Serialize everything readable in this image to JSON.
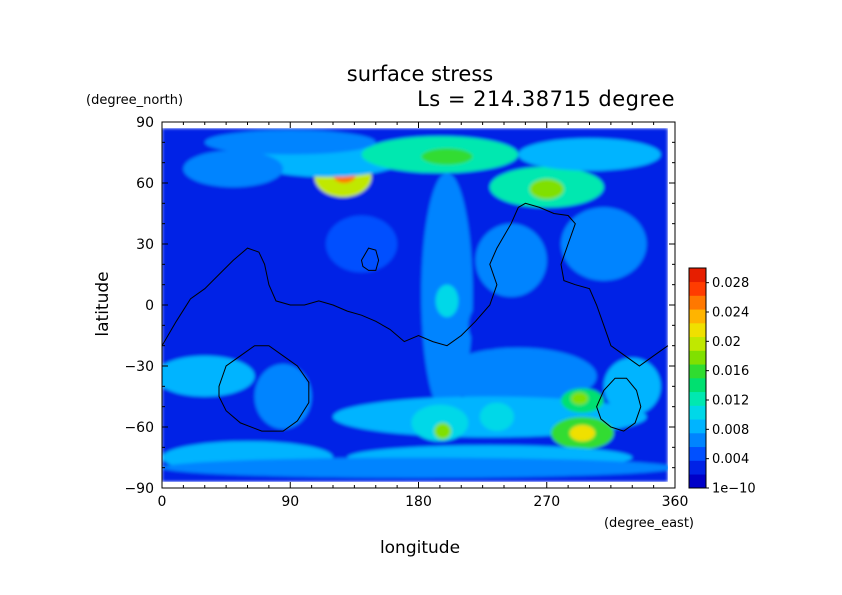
{
  "chart_data": {
    "type": "heatmap",
    "title": "surface stress",
    "subtitle": "Ls = 214.38715 degree",
    "xlabel": "longitude",
    "ylabel": "latitude",
    "xunit": "(degree_east)",
    "yunit": "(degree_north)",
    "xlim": [
      0,
      360
    ],
    "ylim": [
      -90,
      90
    ],
    "xticks": [
      0,
      90,
      180,
      270,
      360
    ],
    "yticks": [
      90,
      60,
      30,
      0,
      -30,
      -60,
      -90
    ],
    "xtick_labels": [
      "0",
      "90",
      "180",
      "270",
      "360"
    ],
    "ytick_labels": [
      "90",
      "60",
      "30",
      "0",
      "−30",
      "−60",
      "−90"
    ],
    "data_extent": {
      "lon": [
        0,
        355
      ],
      "lat": [
        -87,
        87
      ]
    },
    "background_level": 0.003,
    "colorbar": {
      "min": 1e-10,
      "max": 0.03,
      "labels": [
        "1e−10",
        "0.004",
        "0.008",
        "0.012",
        "0.016",
        "0.02",
        "0.024",
        "0.028"
      ],
      "label_values": [
        1e-10,
        0.004,
        0.008,
        0.012,
        0.016,
        0.02,
        0.024,
        0.028
      ],
      "palette": [
        "#0000c8",
        "#0022e6",
        "#0050ff",
        "#0084ff",
        "#00b4ff",
        "#00d8e8",
        "#00e8b0",
        "#00e070",
        "#30dc30",
        "#80e000",
        "#c0e800",
        "#f0e000",
        "#ffb400",
        "#ff7800",
        "#ff3c00",
        "#e61e00"
      ]
    },
    "features": [
      {
        "lon": 127,
        "lat": 63,
        "rx": 20,
        "ry": 10,
        "value": 0.019
      },
      {
        "lon": 128,
        "lat": 64,
        "rx": 8,
        "ry": 4,
        "value": 0.025
      },
      {
        "lon": 115,
        "lat": 72,
        "rx": 55,
        "ry": 9,
        "value": 0.008
      },
      {
        "lon": 195,
        "lat": 74,
        "rx": 55,
        "ry": 9,
        "value": 0.012
      },
      {
        "lon": 200,
        "lat": 73,
        "rx": 18,
        "ry": 4,
        "value": 0.016
      },
      {
        "lon": 90,
        "lat": 80,
        "rx": 60,
        "ry": 6,
        "value": 0.007
      },
      {
        "lon": 270,
        "lat": 58,
        "rx": 40,
        "ry": 10,
        "value": 0.013
      },
      {
        "lon": 270,
        "lat": 57,
        "rx": 12,
        "ry": 5,
        "value": 0.018
      },
      {
        "lon": 300,
        "lat": 74,
        "rx": 50,
        "ry": 8,
        "value": 0.008
      },
      {
        "lon": 50,
        "lat": 67,
        "rx": 35,
        "ry": 9,
        "value": 0.007
      },
      {
        "lon": 200,
        "lat": 5,
        "rx": 18,
        "ry": 60,
        "value": 0.007
      },
      {
        "lon": 200,
        "lat": 2,
        "rx": 8,
        "ry": 8,
        "value": 0.01
      },
      {
        "lon": 245,
        "lat": 22,
        "rx": 25,
        "ry": 18,
        "value": 0.007
      },
      {
        "lon": 30,
        "lat": -35,
        "rx": 35,
        "ry": 10,
        "value": 0.008
      },
      {
        "lon": 310,
        "lat": 30,
        "rx": 30,
        "ry": 18,
        "value": 0.006
      },
      {
        "lon": 140,
        "lat": 30,
        "rx": 25,
        "ry": 14,
        "value": 0.005
      },
      {
        "lon": 250,
        "lat": -35,
        "rx": 55,
        "ry": 14,
        "value": 0.006
      },
      {
        "lon": 230,
        "lat": -55,
        "rx": 110,
        "ry": 10,
        "value": 0.009
      },
      {
        "lon": 195,
        "lat": -58,
        "rx": 20,
        "ry": 9,
        "value": 0.011
      },
      {
        "lon": 197,
        "lat": -62,
        "rx": 6,
        "ry": 4,
        "value": 0.017
      },
      {
        "lon": 235,
        "lat": -55,
        "rx": 12,
        "ry": 7,
        "value": 0.011
      },
      {
        "lon": 295,
        "lat": -47,
        "rx": 15,
        "ry": 6,
        "value": 0.014
      },
      {
        "lon": 293,
        "lat": -46,
        "rx": 6,
        "ry": 3,
        "value": 0.017
      },
      {
        "lon": 295,
        "lat": -63,
        "rx": 22,
        "ry": 8,
        "value": 0.016
      },
      {
        "lon": 295,
        "lat": -63,
        "rx": 9,
        "ry": 4,
        "value": 0.022
      },
      {
        "lon": 330,
        "lat": -40,
        "rx": 20,
        "ry": 14,
        "value": 0.009
      },
      {
        "lon": 60,
        "lat": -75,
        "rx": 60,
        "ry": 8,
        "value": 0.008
      },
      {
        "lon": 230,
        "lat": -75,
        "rx": 100,
        "ry": 6,
        "value": 0.008
      },
      {
        "lon": 180,
        "lat": -80,
        "rx": 180,
        "ry": 5,
        "value": 0.006
      },
      {
        "lon": 85,
        "lat": -45,
        "rx": 20,
        "ry": 16,
        "value": 0.007
      },
      {
        "lon": 80,
        "lat": -5,
        "rx": 10,
        "ry": 10,
        "value": 0.002
      },
      {
        "lon": 230,
        "lat": -10,
        "rx": 15,
        "ry": 12,
        "value": 0.002
      }
    ],
    "contours": [
      {
        "name": "dichotomy-line",
        "closed": false,
        "points": [
          [
            0,
            -20
          ],
          [
            10,
            -8
          ],
          [
            20,
            3
          ],
          [
            30,
            8
          ],
          [
            40,
            15
          ],
          [
            50,
            22
          ],
          [
            60,
            28
          ],
          [
            68,
            26
          ],
          [
            72,
            20
          ],
          [
            75,
            10
          ],
          [
            80,
            2
          ],
          [
            90,
            0
          ],
          [
            100,
            0
          ],
          [
            110,
            2
          ],
          [
            120,
            0
          ],
          [
            130,
            -3
          ],
          [
            140,
            -5
          ],
          [
            150,
            -8
          ],
          [
            160,
            -12
          ],
          [
            170,
            -18
          ],
          [
            180,
            -15
          ],
          [
            190,
            -18
          ],
          [
            200,
            -20
          ],
          [
            210,
            -15
          ],
          [
            220,
            -8
          ],
          [
            230,
            0
          ],
          [
            235,
            10
          ],
          [
            230,
            20
          ],
          [
            235,
            28
          ],
          [
            245,
            40
          ],
          [
            250,
            48
          ],
          [
            255,
            50
          ],
          [
            265,
            48
          ],
          [
            275,
            45
          ],
          [
            285,
            44
          ],
          [
            290,
            40
          ],
          [
            285,
            30
          ],
          [
            280,
            20
          ],
          [
            282,
            12
          ],
          [
            290,
            10
          ],
          [
            300,
            8
          ],
          [
            305,
            0
          ],
          [
            310,
            -10
          ],
          [
            315,
            -20
          ],
          [
            325,
            -25
          ],
          [
            335,
            -30
          ],
          [
            345,
            -25
          ],
          [
            355,
            -20
          ]
        ]
      },
      {
        "name": "small-contour",
        "closed": true,
        "points": [
          [
            140,
            22
          ],
          [
            145,
            28
          ],
          [
            150,
            27
          ],
          [
            152,
            22
          ],
          [
            150,
            17
          ],
          [
            145,
            17
          ],
          [
            141,
            19
          ]
        ]
      },
      {
        "name": "hellas-contour",
        "closed": true,
        "points": [
          [
            40,
            -40
          ],
          [
            45,
            -30
          ],
          [
            55,
            -25
          ],
          [
            65,
            -20
          ],
          [
            75,
            -20
          ],
          [
            85,
            -25
          ],
          [
            95,
            -30
          ],
          [
            103,
            -38
          ],
          [
            103,
            -48
          ],
          [
            95,
            -57
          ],
          [
            85,
            -62
          ],
          [
            70,
            -62
          ],
          [
            55,
            -58
          ],
          [
            45,
            -52
          ],
          [
            40,
            -45
          ]
        ]
      },
      {
        "name": "argyre-contour",
        "closed": true,
        "points": [
          [
            305,
            -50
          ],
          [
            310,
            -42
          ],
          [
            318,
            -36
          ],
          [
            326,
            -36
          ],
          [
            333,
            -42
          ],
          [
            336,
            -50
          ],
          [
            332,
            -58
          ],
          [
            324,
            -62
          ],
          [
            315,
            -60
          ],
          [
            308,
            -56
          ]
        ]
      }
    ]
  }
}
